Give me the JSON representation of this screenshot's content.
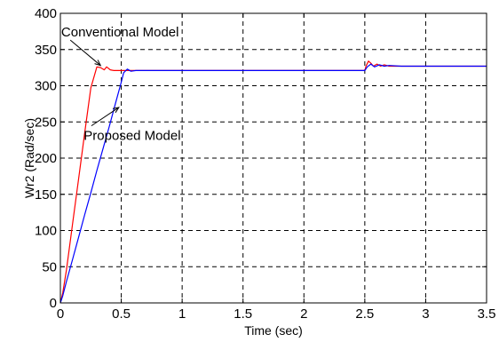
{
  "chart_data": {
    "type": "line",
    "title": "",
    "xlabel": "Time (sec)",
    "ylabel": "Wr2 (Rad/sec)",
    "xlim": [
      0,
      3.5
    ],
    "ylim": [
      0,
      400
    ],
    "xticks": [
      0,
      0.5,
      1,
      1.5,
      2,
      2.5,
      3,
      3.5
    ],
    "yticks": [
      0,
      50,
      100,
      150,
      200,
      250,
      300,
      350,
      400
    ],
    "xtick_labels": [
      "0",
      "0.5",
      "1",
      "1.5",
      "2",
      "2.5",
      "3",
      "3.5"
    ],
    "ytick_labels": [
      "0",
      "50",
      "100",
      "150",
      "200",
      "250",
      "300",
      "350",
      "400"
    ],
    "grid": true,
    "series": [
      {
        "color": "#ff0000",
        "x": [
          0,
          0.02,
          0.05,
          0.1,
          0.15,
          0.2,
          0.25,
          0.3,
          0.33,
          0.36,
          0.38,
          0.41,
          0.44,
          0.47,
          0.5,
          0.55,
          0.6,
          1.0,
          1.5,
          2.0,
          2.5,
          2.51,
          2.53,
          2.55,
          2.57,
          2.6,
          2.63,
          2.66,
          2.7,
          2.8,
          3.0,
          3.5
        ],
        "y": [
          0,
          14,
          46,
          109,
          172,
          235,
          297,
          326,
          325,
          322,
          326,
          322,
          321,
          321,
          321,
          321,
          321,
          321,
          321,
          321,
          321,
          327,
          334,
          331,
          327,
          330,
          327,
          329,
          327,
          327,
          327,
          327
        ]
      },
      {
        "color": "#0000ff",
        "x": [
          0,
          0.02,
          0.05,
          0.1,
          0.15,
          0.2,
          0.25,
          0.3,
          0.35,
          0.4,
          0.45,
          0.5,
          0.52,
          0.55,
          0.58,
          0.62,
          0.7,
          1.0,
          1.5,
          2.0,
          2.5,
          2.52,
          2.55,
          2.58,
          2.62,
          2.66,
          2.7,
          2.8,
          3.0,
          3.5
        ],
        "y": [
          0,
          10,
          30,
          60,
          91,
          122,
          152,
          183,
          213,
          243,
          274,
          305,
          318,
          323,
          320,
          321,
          321,
          321,
          321,
          321,
          321,
          326,
          330,
          326,
          329,
          327,
          328,
          327,
          327,
          327
        ]
      }
    ],
    "annotations": [
      {
        "text": "Conventional Model",
        "x": 0.49,
        "y": 368,
        "arrow_to": [
          0.33,
          328
        ]
      },
      {
        "text": "Proposed Model",
        "x": 0.59,
        "y": 225,
        "arrow_to": [
          0.48,
          270
        ]
      }
    ]
  }
}
